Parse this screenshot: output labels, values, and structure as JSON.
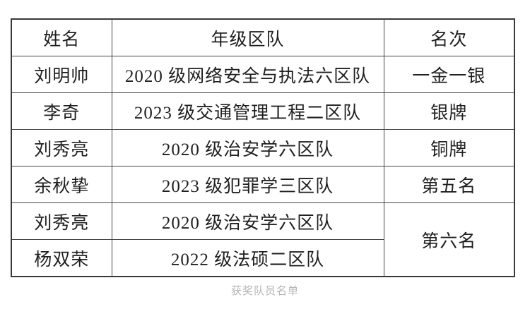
{
  "table": {
    "headers": {
      "name": "姓名",
      "squad": "年级区队",
      "rank": "名次"
    },
    "rows": [
      {
        "name": "刘明帅",
        "squad": "2020 级网络安全与执法六区队",
        "rank": "一金一银"
      },
      {
        "name": "李奇",
        "squad": "2023 级交通管理工程二区队",
        "rank": "银牌"
      },
      {
        "name": "刘秀亮",
        "squad": "2020 级治安学六区队",
        "rank": "铜牌"
      },
      {
        "name": "余秋挚",
        "squad": "2023 级犯罪学三区队",
        "rank": "第五名"
      },
      {
        "name": "刘秀亮",
        "squad": "2020 级治安学六区队",
        "rank": "第六名"
      },
      {
        "name": "杨双荣",
        "squad": "2022 级法硕二区队",
        "rank": "第六名"
      }
    ],
    "merged_rank": {
      "label": "第六名",
      "spans_rows": [
        5,
        6
      ]
    }
  },
  "caption": "获奖队员名单",
  "colors": {
    "border_outer": "#383838",
    "border_inner": "#454545",
    "text": "#1f1f1f",
    "caption": "#b4b4b4",
    "background": "#ffffff"
  }
}
